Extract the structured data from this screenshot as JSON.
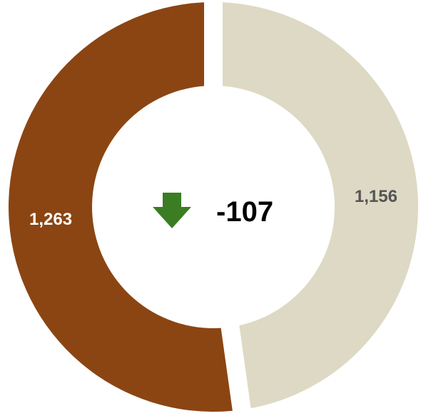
{
  "chart_data": {
    "type": "pie",
    "subtype": "donut",
    "slices": [
      {
        "value": 1156,
        "label": "1,156",
        "color": "#ddd9c4",
        "label_color": "#555555"
      },
      {
        "value": 1263,
        "label": "1,263",
        "color": "#8b4513",
        "label_color": "#ffffff"
      }
    ],
    "center": {
      "text": "-107",
      "indicator": "down-arrow-icon",
      "indicator_color": "#3a7d22"
    }
  }
}
